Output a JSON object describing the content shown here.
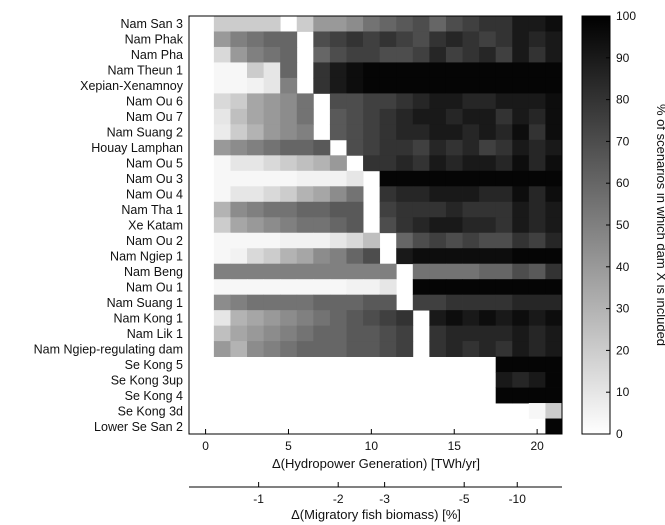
{
  "chart_data": {
    "type": "heatmap",
    "title": "",
    "rows": [
      {
        "name": "Nam San 3",
        "star_x": 5
      },
      {
        "name": "Nam Phak",
        "star_x": 6
      },
      {
        "name": "Nam Pha",
        "star_x": 6
      },
      {
        "name": "Nam Theun 1",
        "star_x": 6
      },
      {
        "name": "Xepian-Xenamnoy",
        "star_x": 6
      },
      {
        "name": "Nam Ou 6",
        "star_x": 7
      },
      {
        "name": "Nam Ou 7",
        "star_x": 7
      },
      {
        "name": "Nam Suang 2",
        "star_x": 7
      },
      {
        "name": "Houay Lamphan",
        "star_x": 8
      },
      {
        "name": "Nam Ou 5",
        "star_x": 9
      },
      {
        "name": "Nam Ou 3",
        "star_x": 10
      },
      {
        "name": "Nam Ou 4",
        "star_x": 10
      },
      {
        "name": "Nam Tha 1",
        "star_x": 10
      },
      {
        "name": "Xe Katam",
        "star_x": 10
      },
      {
        "name": "Nam Ou 2",
        "star_x": 11
      },
      {
        "name": "Nam Ngiep 1",
        "star_x": 11
      },
      {
        "name": "Nam Beng",
        "star_x": 12
      },
      {
        "name": "Nam Ou 1",
        "star_x": 12
      },
      {
        "name": "Nam Suang 1",
        "star_x": 12
      },
      {
        "name": "Nam Kong 1",
        "star_x": 13
      },
      {
        "name": "Nam Lik 1",
        "star_x": 13
      },
      {
        "name": "Nam Ngiep-regulating dam",
        "star_x": 13
      },
      {
        "name": "Se Kong 5",
        "star_x": 16
      },
      {
        "name": "Se Kong 3up",
        "star_x": 17
      },
      {
        "name": "Se Kong 4",
        "star_x": 17
      },
      {
        "name": "Se Kong 3d",
        "star_x": 19
      },
      {
        "name": "Lower Se San 2",
        "star_x": 20
      }
    ],
    "x_bins": [
      0,
      1,
      2,
      3,
      4,
      5,
      6,
      7,
      8,
      9,
      10,
      11,
      12,
      13,
      14,
      15,
      16,
      17,
      18,
      19,
      20,
      21
    ],
    "cells": [
      [
        null,
        20,
        20,
        20,
        20,
        null,
        20,
        40,
        40,
        45,
        55,
        60,
        65,
        70,
        60,
        70,
        75,
        80,
        80,
        90,
        90,
        95
      ],
      [
        null,
        40,
        50,
        55,
        60,
        60,
        null,
        70,
        75,
        80,
        75,
        80,
        75,
        70,
        80,
        85,
        80,
        75,
        80,
        90,
        85,
        90
      ],
      [
        null,
        15,
        40,
        50,
        55,
        60,
        null,
        60,
        70,
        75,
        75,
        70,
        70,
        75,
        85,
        75,
        80,
        85,
        75,
        90,
        80,
        90
      ],
      [
        null,
        3,
        3,
        20,
        10,
        60,
        null,
        80,
        90,
        95,
        98,
        98,
        98,
        98,
        98,
        98,
        98,
        98,
        98,
        98,
        98,
        98
      ],
      [
        null,
        3,
        3,
        5,
        10,
        50,
        null,
        80,
        90,
        95,
        98,
        98,
        98,
        98,
        98,
        98,
        98,
        98,
        98,
        98,
        98,
        98
      ],
      [
        null,
        15,
        20,
        35,
        40,
        45,
        55,
        null,
        70,
        70,
        75,
        75,
        80,
        85,
        90,
        90,
        85,
        85,
        90,
        90,
        90,
        95
      ],
      [
        null,
        10,
        25,
        35,
        40,
        45,
        55,
        null,
        65,
        70,
        75,
        80,
        85,
        90,
        90,
        85,
        90,
        90,
        80,
        90,
        85,
        95
      ],
      [
        null,
        8,
        20,
        30,
        40,
        45,
        50,
        null,
        65,
        70,
        75,
        80,
        85,
        85,
        90,
        90,
        85,
        90,
        85,
        95,
        80,
        95
      ],
      [
        null,
        40,
        45,
        50,
        55,
        60,
        60,
        65,
        null,
        70,
        75,
        80,
        80,
        75,
        85,
        80,
        85,
        75,
        80,
        90,
        85,
        90
      ],
      [
        null,
        3,
        10,
        10,
        15,
        20,
        25,
        30,
        40,
        null,
        80,
        80,
        85,
        80,
        90,
        85,
        90,
        90,
        85,
        95,
        85,
        95
      ],
      [
        null,
        3,
        3,
        3,
        3,
        3,
        5,
        5,
        5,
        10,
        null,
        98,
        98,
        98,
        98,
        98,
        98,
        98,
        98,
        98,
        98,
        98
      ],
      [
        null,
        3,
        10,
        10,
        15,
        20,
        30,
        35,
        45,
        55,
        null,
        80,
        85,
        85,
        90,
        90,
        90,
        85,
        85,
        95,
        85,
        95
      ],
      [
        null,
        30,
        45,
        50,
        55,
        55,
        60,
        60,
        65,
        65,
        null,
        75,
        80,
        80,
        80,
        85,
        80,
        80,
        80,
        90,
        85,
        90
      ],
      [
        null,
        20,
        35,
        40,
        45,
        50,
        55,
        55,
        60,
        65,
        null,
        70,
        80,
        85,
        90,
        90,
        85,
        85,
        80,
        90,
        85,
        90
      ],
      [
        null,
        3,
        3,
        3,
        3,
        5,
        5,
        5,
        10,
        15,
        25,
        null,
        60,
        70,
        75,
        70,
        75,
        70,
        70,
        80,
        75,
        85
      ],
      [
        null,
        3,
        5,
        15,
        20,
        30,
        35,
        45,
        50,
        60,
        70,
        null,
        90,
        95,
        95,
        95,
        95,
        95,
        95,
        98,
        98,
        98
      ],
      [
        null,
        50,
        50,
        50,
        50,
        50,
        50,
        50,
        50,
        50,
        50,
        50,
        null,
        55,
        55,
        55,
        55,
        60,
        60,
        70,
        65,
        80
      ],
      [
        null,
        3,
        3,
        3,
        3,
        3,
        3,
        3,
        3,
        5,
        5,
        10,
        null,
        98,
        98,
        98,
        98,
        98,
        98,
        98,
        98,
        98
      ],
      [
        null,
        45,
        50,
        55,
        55,
        55,
        55,
        60,
        60,
        60,
        65,
        65,
        null,
        75,
        75,
        80,
        80,
        80,
        80,
        85,
        85,
        85
      ],
      [
        null,
        10,
        30,
        35,
        40,
        45,
        50,
        55,
        60,
        65,
        70,
        75,
        80,
        null,
        90,
        95,
        90,
        95,
        90,
        95,
        90,
        95
      ],
      [
        null,
        25,
        35,
        40,
        45,
        50,
        55,
        60,
        60,
        65,
        65,
        70,
        75,
        null,
        80,
        85,
        85,
        85,
        85,
        90,
        85,
        90
      ],
      [
        null,
        40,
        30,
        45,
        50,
        55,
        60,
        60,
        60,
        65,
        65,
        70,
        75,
        null,
        80,
        85,
        80,
        85,
        80,
        90,
        85,
        90
      ],
      [
        null,
        null,
        null,
        null,
        null,
        null,
        null,
        null,
        null,
        null,
        null,
        null,
        null,
        null,
        null,
        null,
        null,
        null,
        98,
        98,
        98,
        98
      ],
      [
        null,
        null,
        null,
        null,
        null,
        null,
        null,
        null,
        null,
        null,
        null,
        null,
        null,
        null,
        null,
        null,
        null,
        null,
        90,
        85,
        90,
        98
      ],
      [
        null,
        null,
        null,
        null,
        null,
        null,
        null,
        null,
        null,
        null,
        null,
        null,
        null,
        null,
        null,
        null,
        null,
        null,
        98,
        98,
        98,
        98
      ],
      [
        null,
        null,
        null,
        null,
        null,
        null,
        null,
        null,
        null,
        null,
        null,
        null,
        null,
        null,
        null,
        null,
        null,
        null,
        null,
        null,
        3,
        20
      ],
      [
        null,
        null,
        null,
        null,
        null,
        null,
        null,
        null,
        null,
        null,
        null,
        null,
        null,
        null,
        null,
        null,
        null,
        null,
        null,
        null,
        null,
        98
      ]
    ],
    "star_glyph": "★",
    "xlabel": "Δ(Hydropower Generation) [TWh/yr]",
    "xlim": [
      -1,
      21.5
    ],
    "xticks": [
      0,
      5,
      10,
      15,
      20
    ],
    "x2label": "Δ(Migratory fish biomass) [%]",
    "x2ticks": [
      {
        "label": "-1",
        "at": 3.2
      },
      {
        "label": "-2",
        "at": 8.0
      },
      {
        "label": "-3",
        "at": 10.8
      },
      {
        "label": "-5",
        "at": 15.6
      },
      {
        "label": "-10",
        "at": 18.8
      }
    ],
    "colorbar": {
      "label": "% of scenarios in which dam X is included",
      "range": [
        0,
        100
      ],
      "ticks": [
        0,
        10,
        20,
        30,
        40,
        50,
        60,
        70,
        80,
        90,
        100
      ]
    }
  }
}
